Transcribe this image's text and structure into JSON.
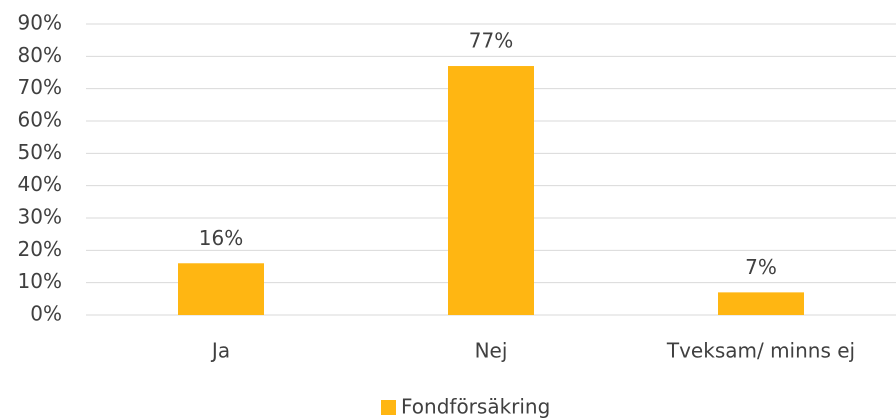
{
  "chart_data": {
    "type": "bar",
    "categories": [
      "Ja",
      "Nej",
      "Tveksam/ minns ej"
    ],
    "series": [
      {
        "name": "Fondförsäkring",
        "color": "#FFB612",
        "values": [
          16,
          77,
          7
        ],
        "value_labels": [
          "16%",
          "77%",
          "7%"
        ]
      }
    ],
    "ylim": [
      0,
      90
    ],
    "yticks": [
      {
        "value": 0,
        "label": "0%"
      },
      {
        "value": 10,
        "label": "10%"
      },
      {
        "value": 20,
        "label": "20%"
      },
      {
        "value": 30,
        "label": "30%"
      },
      {
        "value": 40,
        "label": "40%"
      },
      {
        "value": 50,
        "label": "50%"
      },
      {
        "value": 60,
        "label": "60%"
      },
      {
        "value": 70,
        "label": "70%"
      },
      {
        "value": 80,
        "label": "80%"
      },
      {
        "value": 90,
        "label": "90%"
      }
    ],
    "grid": true,
    "legend": "bottom"
  }
}
